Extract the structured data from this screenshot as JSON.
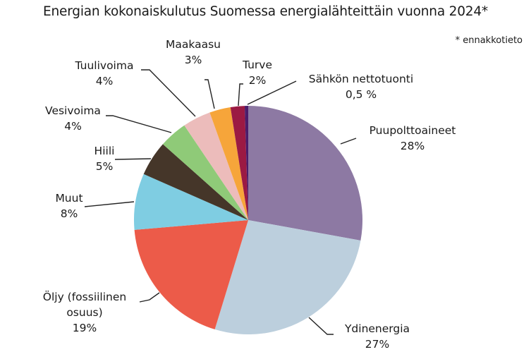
{
  "chart_data": {
    "type": "pie",
    "title": "Energian kokonaiskulutus Suomessa energialähteittäin vuonna 2024*",
    "note": "* ennakkotieto",
    "start_angle_deg": 0,
    "direction": "clockwise",
    "slices": [
      {
        "name": "Puupolttoaineet",
        "value": 28,
        "label": "28%",
        "color": "#8d79a3"
      },
      {
        "name": "Ydinenergia",
        "value": 27,
        "label": "27%",
        "color": "#bccfdd"
      },
      {
        "name": "Öljy (fossiilinen osuus)",
        "value": 19,
        "label": "19%",
        "color": "#ec5b49"
      },
      {
        "name": "Muut",
        "value": 8,
        "label": "8%",
        "color": "#7fcde2"
      },
      {
        "name": "Hiili",
        "value": 5,
        "label": "5%",
        "color": "#453629"
      },
      {
        "name": "Vesivoima",
        "value": 4,
        "label": "4%",
        "color": "#8fca78"
      },
      {
        "name": "Tuulivoima",
        "value": 4,
        "label": "4%",
        "color": "#ecbcbb"
      },
      {
        "name": "Maakaasu",
        "value": 3,
        "label": "3%",
        "color": "#f6a53a"
      },
      {
        "name": "Turve",
        "value": 2,
        "label": "2%",
        "color": "#9b1a43"
      },
      {
        "name": "Sähkön nettotuonti",
        "value": 0.5,
        "label": "0,5 %",
        "color": "#4b1d6b"
      }
    ]
  },
  "labels": {
    "puu": {
      "name": "Puupolttoaineet",
      "pct": "28%"
    },
    "ydin": {
      "name": "Ydinenergia",
      "pct": "27%"
    },
    "oljy": {
      "name1": "Öljy (fossiilinen",
      "name2": "osuus)",
      "pct": "19%"
    },
    "muut": {
      "name": "Muut",
      "pct": "8%"
    },
    "hiili": {
      "name": "Hiili",
      "pct": "5%"
    },
    "vesi": {
      "name": "Vesivoima",
      "pct": "4%"
    },
    "tuuli": {
      "name": "Tuulivoima",
      "pct": "4%"
    },
    "maakaasu": {
      "name": "Maakaasu",
      "pct": "3%"
    },
    "turve": {
      "name": "Turve",
      "pct": "2%"
    },
    "sahko": {
      "name": "Sähkön nettotuonti",
      "pct": "0,5 %"
    }
  }
}
